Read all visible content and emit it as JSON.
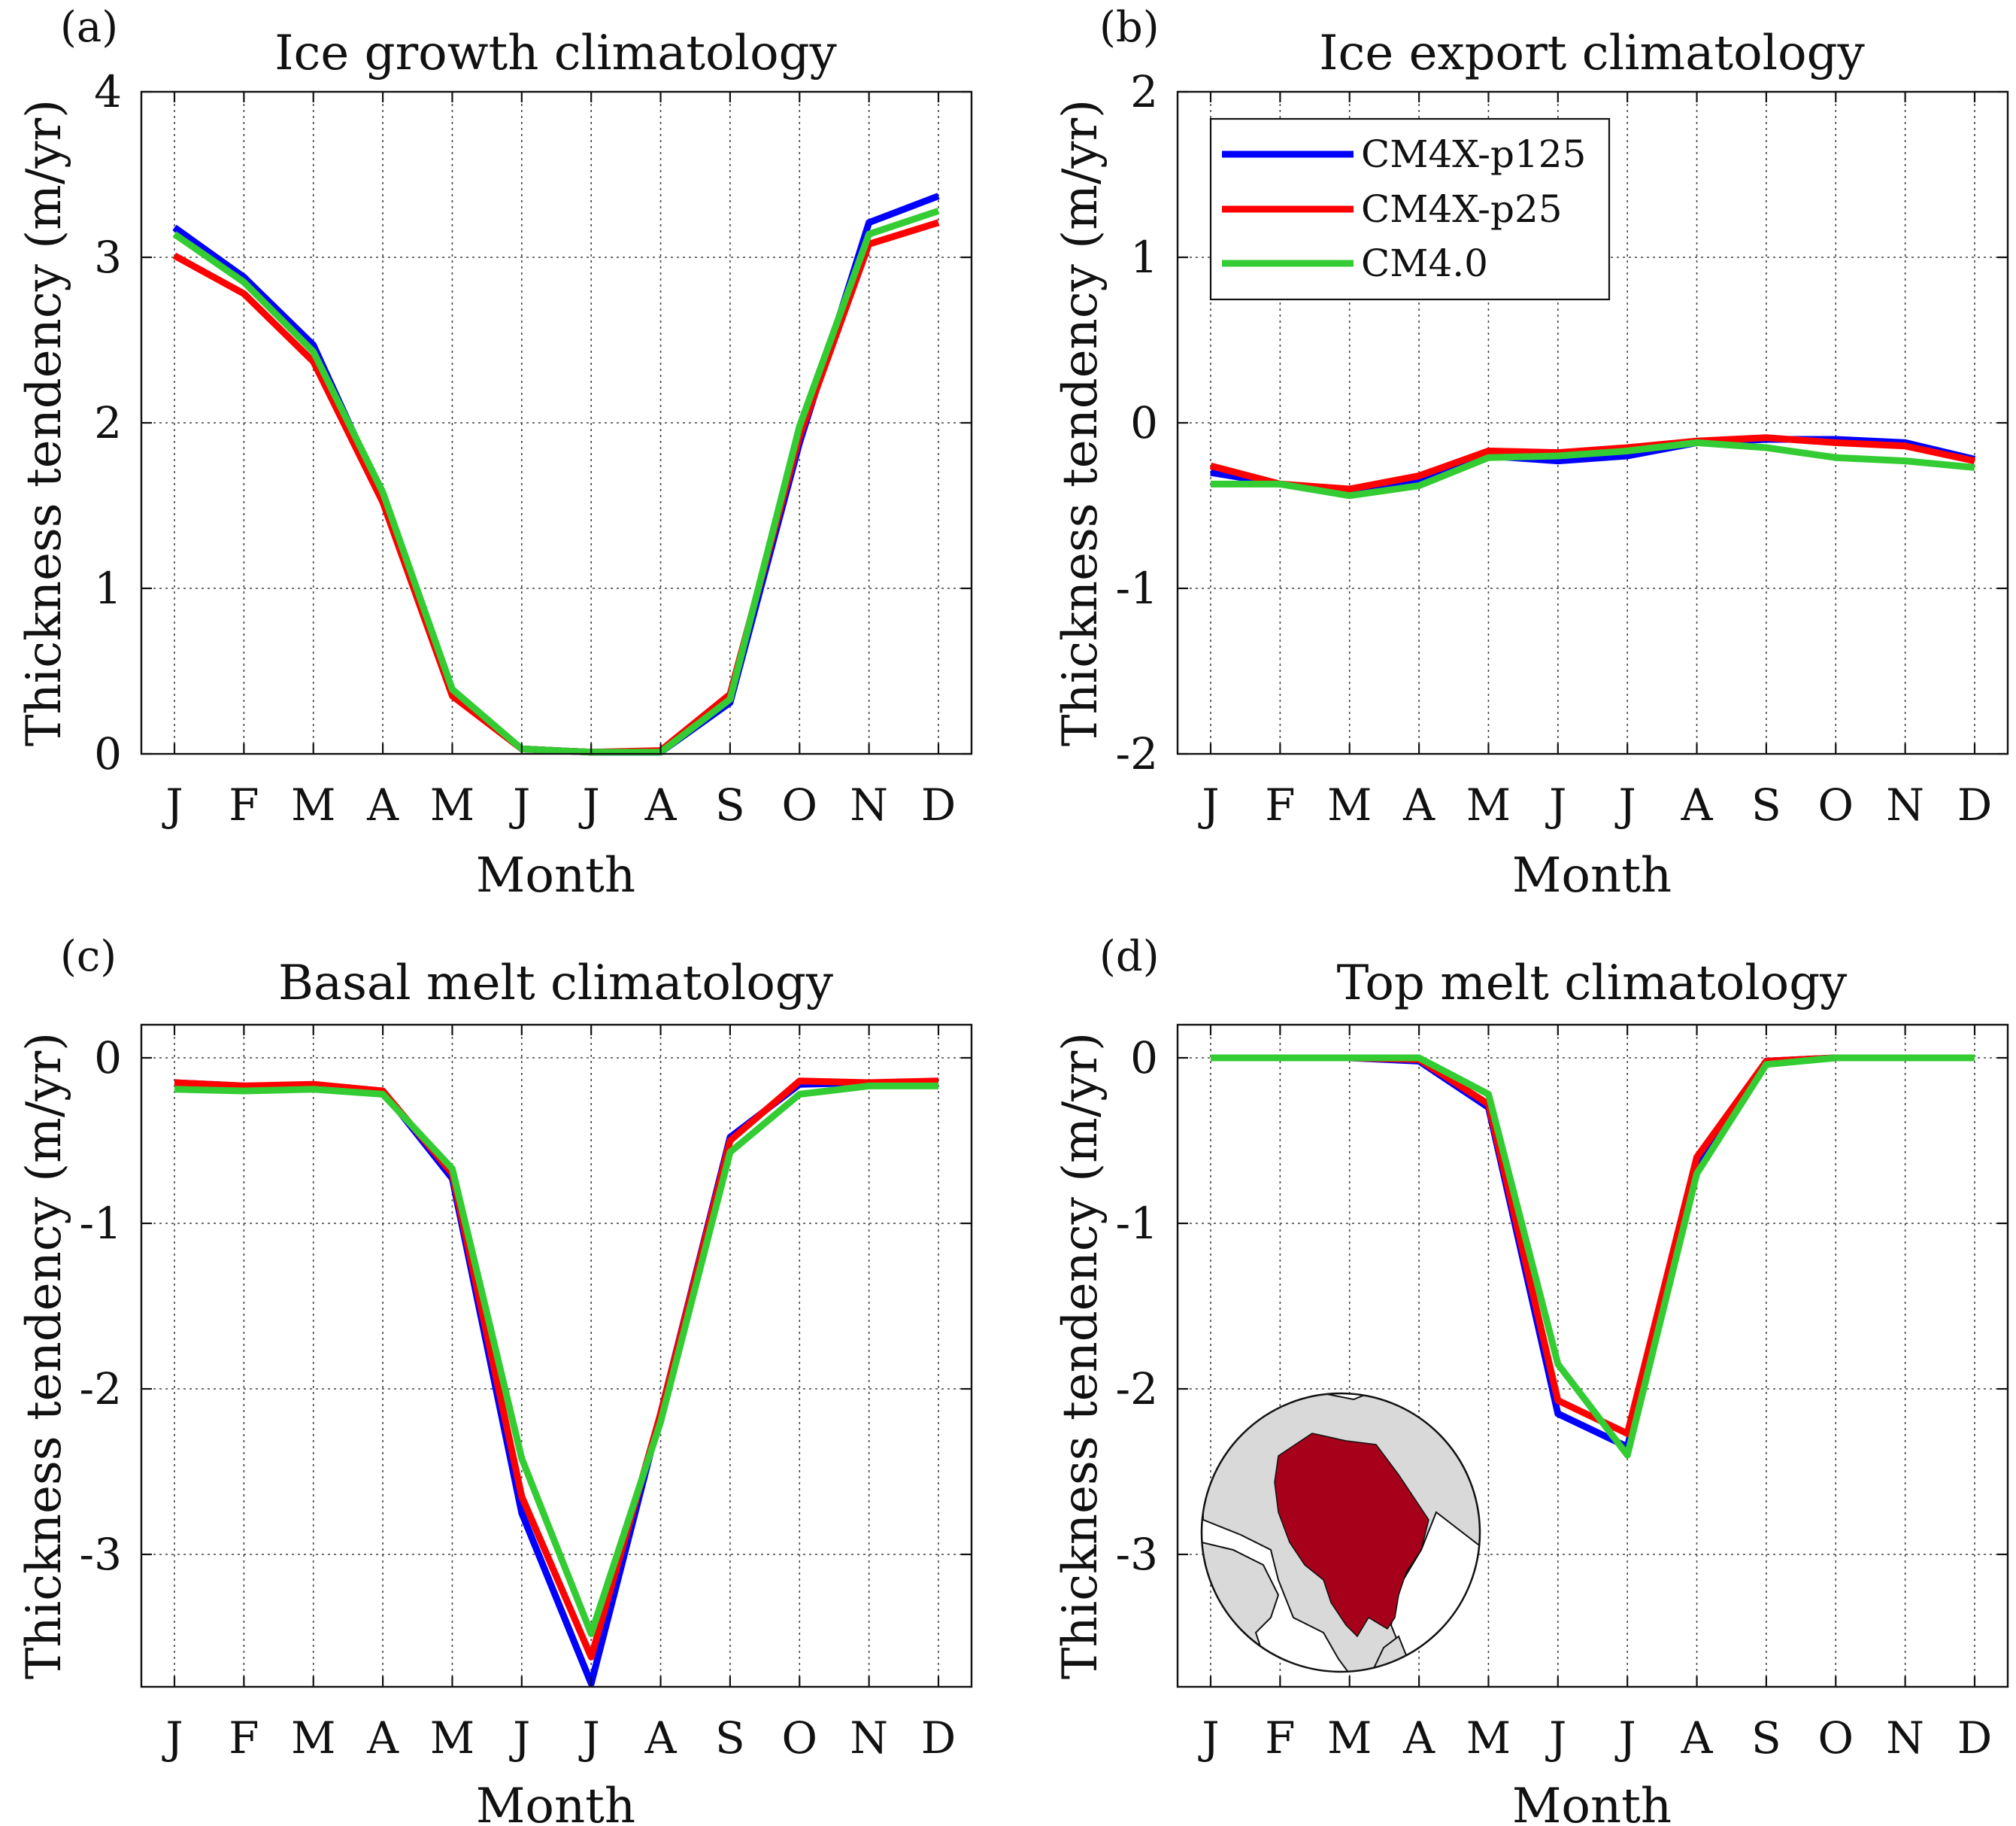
{
  "colors": {
    "CM4X-p125": "#0000ff",
    "CM4X-p25": "#ff0000",
    "CM4.0": "#33cc33"
  },
  "chart_data": [
    {
      "type": "line",
      "panel": "(a)",
      "title": "Ice growth climatology",
      "xlabel": "Month",
      "ylabel": "Thickness tendency (m/yr)",
      "categories": [
        "J",
        "F",
        "M",
        "A",
        "M",
        "J",
        "J",
        "A",
        "S",
        "O",
        "N",
        "D"
      ],
      "ylim": [
        0,
        4
      ],
      "yticks": [
        0,
        1,
        2,
        3,
        4
      ],
      "grid": true,
      "series": [
        {
          "name": "CM4X-p125",
          "values": [
            3.18,
            2.88,
            2.47,
            1.55,
            0.38,
            0.03,
            0.01,
            0.01,
            0.31,
            1.88,
            3.21,
            3.37
          ]
        },
        {
          "name": "CM4X-p25",
          "values": [
            3.01,
            2.78,
            2.37,
            1.52,
            0.35,
            0.03,
            0.01,
            0.02,
            0.36,
            1.92,
            3.08,
            3.21
          ]
        },
        {
          "name": "CM4.0",
          "values": [
            3.14,
            2.85,
            2.43,
            1.58,
            0.39,
            0.03,
            0.01,
            0.01,
            0.33,
            1.98,
            3.14,
            3.28
          ]
        }
      ]
    },
    {
      "type": "line",
      "panel": "(b)",
      "title": "Ice export climatology",
      "xlabel": "Month",
      "ylabel": "Thickness tendency (m/yr)",
      "categories": [
        "J",
        "F",
        "M",
        "A",
        "M",
        "J",
        "J",
        "A",
        "S",
        "O",
        "N",
        "D"
      ],
      "ylim": [
        -2,
        2
      ],
      "yticks": [
        -2,
        -1,
        0,
        1,
        2
      ],
      "grid": true,
      "legend": {
        "placement": "top-left",
        "entries": [
          "CM4X-p125",
          "CM4X-p25",
          "CM4.0"
        ]
      },
      "series": [
        {
          "name": "CM4X-p125",
          "values": [
            -0.3,
            -0.37,
            -0.42,
            -0.35,
            -0.2,
            -0.23,
            -0.2,
            -0.12,
            -0.1,
            -0.1,
            -0.12,
            -0.22
          ]
        },
        {
          "name": "CM4X-p25",
          "values": [
            -0.26,
            -0.37,
            -0.4,
            -0.32,
            -0.17,
            -0.18,
            -0.15,
            -0.11,
            -0.09,
            -0.12,
            -0.14,
            -0.23
          ]
        },
        {
          "name": "CM4.0",
          "values": [
            -0.37,
            -0.37,
            -0.44,
            -0.38,
            -0.21,
            -0.2,
            -0.17,
            -0.12,
            -0.15,
            -0.21,
            -0.23,
            -0.27
          ]
        }
      ]
    },
    {
      "type": "line",
      "panel": "(c)",
      "title": "Basal melt climatology",
      "xlabel": "Month",
      "ylabel": "Thickness tendency (m/yr)",
      "categories": [
        "J",
        "F",
        "M",
        "A",
        "M",
        "J",
        "J",
        "A",
        "S",
        "O",
        "N",
        "D"
      ],
      "ylim": [
        -3.8,
        0.2
      ],
      "yticks": [
        -3,
        -2,
        -1,
        0
      ],
      "grid": true,
      "series": [
        {
          "name": "CM4X-p125",
          "values": [
            -0.15,
            -0.17,
            -0.17,
            -0.2,
            -0.73,
            -2.75,
            -3.78,
            -2.15,
            -0.48,
            -0.16,
            -0.15,
            -0.15
          ]
        },
        {
          "name": "CM4X-p25",
          "values": [
            -0.15,
            -0.17,
            -0.16,
            -0.2,
            -0.7,
            -2.65,
            -3.62,
            -2.15,
            -0.5,
            -0.14,
            -0.15,
            -0.14
          ]
        },
        {
          "name": "CM4.0",
          "values": [
            -0.19,
            -0.2,
            -0.19,
            -0.22,
            -0.67,
            -2.42,
            -3.48,
            -2.2,
            -0.57,
            -0.22,
            -0.17,
            -0.17
          ]
        }
      ]
    },
    {
      "type": "line",
      "panel": "(d)",
      "title": "Top melt climatology",
      "xlabel": "Month",
      "ylabel": "Thickness tendency (m/yr)",
      "categories": [
        "J",
        "F",
        "M",
        "A",
        "M",
        "J",
        "J",
        "A",
        "S",
        "O",
        "N",
        "D"
      ],
      "ylim": [
        -3.8,
        0.2
      ],
      "yticks": [
        -3,
        -2,
        -1,
        0
      ],
      "grid": true,
      "series": [
        {
          "name": "CM4X-p125",
          "values": [
            0.0,
            0.0,
            0.0,
            -0.02,
            -0.3,
            -2.15,
            -2.35,
            -0.63,
            -0.02,
            0.0,
            0.0,
            0.0
          ]
        },
        {
          "name": "CM4X-p25",
          "values": [
            0.0,
            0.0,
            0.0,
            -0.01,
            -0.28,
            -2.07,
            -2.27,
            -0.6,
            -0.02,
            0.0,
            0.0,
            0.0
          ]
        },
        {
          "name": "CM4.0",
          "values": [
            0.0,
            0.0,
            0.0,
            0.0,
            -0.22,
            -1.85,
            -2.4,
            -0.7,
            -0.04,
            0.0,
            0.0,
            0.0
          ]
        }
      ]
    }
  ]
}
